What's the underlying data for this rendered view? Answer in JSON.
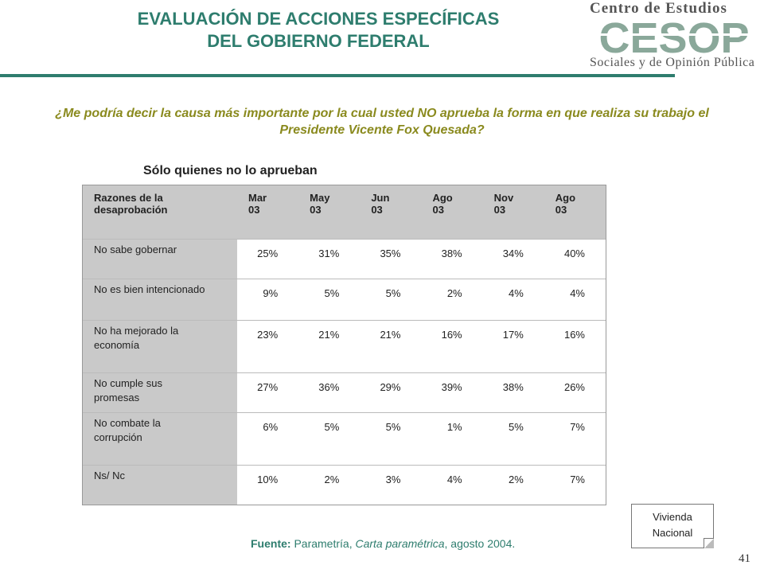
{
  "title": {
    "line1": "EVALUACIÓN DE ACCIONES ESPECÍFICAS",
    "line2": "DEL GOBIERNO FEDERAL"
  },
  "logo": {
    "top_text": "Centro de Estudios",
    "acronym": "CESOP",
    "bottom_text": "Sociales y de Opinión Pública",
    "accent": "#8aa89a"
  },
  "question": "¿Me podría decir la causa más importante por la cual usted NO aprueba la forma en que realiza su trabajo el Presidente Vicente Fox Quesada?",
  "subtitle": "Sólo quienes no lo aprueban",
  "table": {
    "header_reason": [
      "Razones de la",
      "desaprobación"
    ],
    "columns": [
      [
        "Mar",
        "03"
      ],
      [
        "May",
        "03"
      ],
      [
        "Jun",
        "03"
      ],
      [
        "Ago",
        "03"
      ],
      [
        "Nov",
        "03"
      ],
      [
        "Ago",
        "03"
      ]
    ],
    "rows": [
      {
        "reason": [
          "No sabe gobernar"
        ],
        "values": [
          "25%",
          "31%",
          "35%",
          "38%",
          "34%",
          "40%"
        ]
      },
      {
        "reason": [
          "No es bien intencionado"
        ],
        "values": [
          "9%",
          "5%",
          "5%",
          "2%",
          "4%",
          "4%"
        ]
      },
      {
        "reason": [
          "No ha mejorado la",
          "economía"
        ],
        "values": [
          "23%",
          "21%",
          "21%",
          "16%",
          "17%",
          "16%"
        ]
      },
      {
        "reason": [
          "No cumple sus",
          "promesas"
        ],
        "values": [
          "27%",
          "36%",
          "29%",
          "39%",
          "38%",
          "26%"
        ]
      },
      {
        "reason": [
          "No combate la",
          "corrupción"
        ],
        "values": [
          "6%",
          "5%",
          "5%",
          "1%",
          "5%",
          "7%"
        ]
      },
      {
        "reason": [
          "Ns/ Nc"
        ],
        "values": [
          "10%",
          "2%",
          "3%",
          "4%",
          "2%",
          "7%"
        ]
      }
    ]
  },
  "source": {
    "label": "Fuente:",
    "text1": " Parametría, ",
    "italic": "Carta paramétrica",
    "text2": ", agosto 2004."
  },
  "note": {
    "line1": "Vivienda",
    "line2": "Nacional"
  },
  "page_number": "41",
  "colors": {
    "title": "#2e7d6e",
    "question": "#8a8a1e",
    "header_bg": "#c9c9c9"
  }
}
